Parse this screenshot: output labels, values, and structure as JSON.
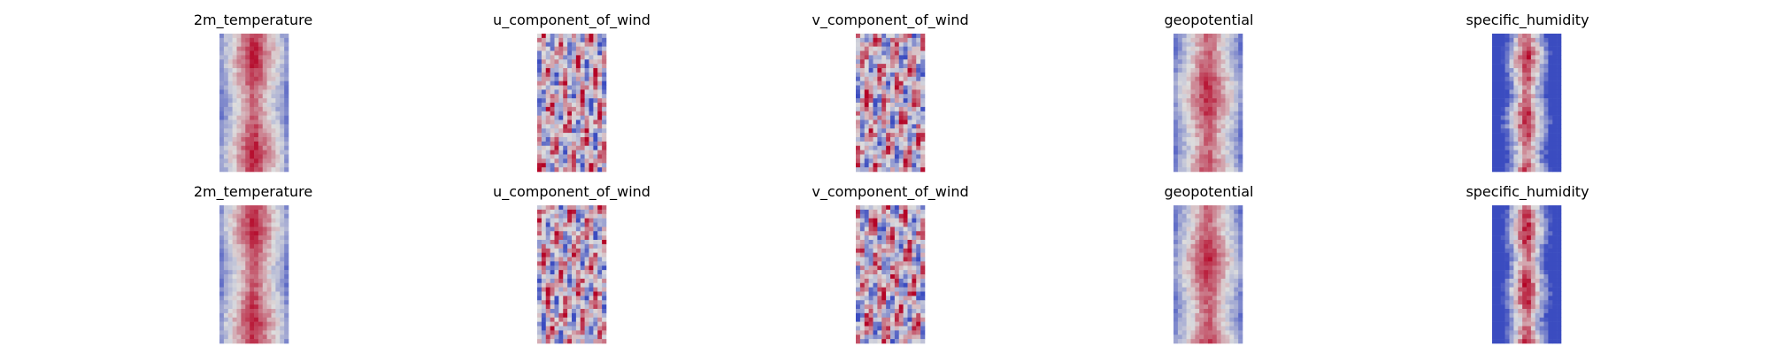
{
  "chart_data": [
    {
      "type": "heatmap",
      "title": "2m_temperature",
      "row": 1,
      "col": 1,
      "colormap": "coolwarm",
      "field": {
        "profile": "warm-center",
        "min": -1,
        "max": 1
      }
    },
    {
      "type": "heatmap",
      "title": "u_component_of_wind",
      "row": 1,
      "col": 2,
      "colormap": "coolwarm",
      "field": {
        "profile": "noisy",
        "min": -1,
        "max": 1
      }
    },
    {
      "type": "heatmap",
      "title": "v_component_of_wind",
      "row": 1,
      "col": 3,
      "colormap": "coolwarm",
      "field": {
        "profile": "noisy",
        "min": -1,
        "max": 1
      }
    },
    {
      "type": "heatmap",
      "title": "geopotential",
      "row": 1,
      "col": 4,
      "colormap": "coolwarm",
      "field": {
        "profile": "warm-center",
        "min": -1,
        "max": 1
      }
    },
    {
      "type": "heatmap",
      "title": "specific_humidity",
      "row": 1,
      "col": 5,
      "colormap": "coolwarm",
      "field": {
        "profile": "narrow-warm-center",
        "min": -1,
        "max": 1
      }
    },
    {
      "type": "heatmap",
      "title": "2m_temperature",
      "row": 2,
      "col": 1,
      "colormap": "coolwarm",
      "field": {
        "profile": "warm-center",
        "min": -1,
        "max": 1
      }
    },
    {
      "type": "heatmap",
      "title": "u_component_of_wind",
      "row": 2,
      "col": 2,
      "colormap": "coolwarm",
      "field": {
        "profile": "noisy",
        "min": -1,
        "max": 1
      }
    },
    {
      "type": "heatmap",
      "title": "v_component_of_wind",
      "row": 2,
      "col": 3,
      "colormap": "coolwarm",
      "field": {
        "profile": "noisy",
        "min": -1,
        "max": 1
      }
    },
    {
      "type": "heatmap",
      "title": "geopotential",
      "row": 2,
      "col": 4,
      "colormap": "coolwarm",
      "field": {
        "profile": "warm-center",
        "min": -1,
        "max": 1
      }
    },
    {
      "type": "heatmap",
      "title": "specific_humidity",
      "row": 2,
      "col": 5,
      "colormap": "coolwarm",
      "field": {
        "profile": "narrow-warm-center",
        "min": -1,
        "max": 1
      }
    }
  ],
  "colors": {
    "cold": "#3b4cc0",
    "neutral": "#dddddd",
    "warm": "#b40426"
  }
}
